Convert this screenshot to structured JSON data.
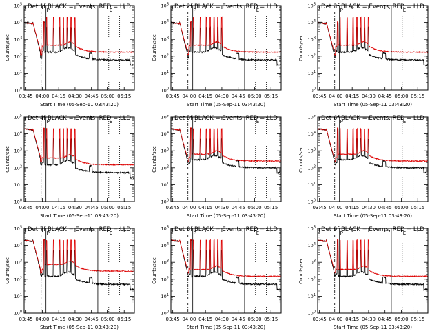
{
  "chart_data": {
    "type": "line",
    "layout": "3x3 grid",
    "shared": {
      "xlabel": "Start Time (05-Sep-11 03:43:20)",
      "ylabel": "Counts/sec",
      "x_tick_labels": [
        "03:45",
        "04:00",
        "04:15",
        "04:30",
        "04:45",
        "05:00",
        "05:15"
      ],
      "x_tick_minutes": [
        1.67,
        16.67,
        31.67,
        46.67,
        61.67,
        76.67,
        91.67
      ],
      "xlim_minutes": [
        0,
        101
      ],
      "y_scale": "log",
      "ylim": [
        1,
        100000
      ],
      "y_tick_labels": [
        "10^0",
        "10^1",
        "10^2",
        "10^3",
        "10^4",
        "10^5"
      ],
      "markers": [
        {
          "style": "dash-dot",
          "x_minutes": 15.6
        },
        {
          "style": "solid",
          "x_minutes": 20.0,
          "label": "P"
        },
        {
          "style": "solid",
          "x_minutes": 67.5
        },
        {
          "style": "dotted",
          "x_minutes": 77.5,
          "label": "E"
        },
        {
          "style": "dotted",
          "x_minutes": 87.5
        }
      ],
      "series_names": [
        "BLACK = Events",
        "RED = LLD"
      ],
      "series_colors": {
        "events": "#000000",
        "lld": "#dd0000"
      }
    },
    "panels": [
      {
        "title": "Det 1f BLACK = Events, RED = LLD",
        "lld_baseline": 180,
        "events_baseline": 60,
        "lld_start": 10000
      },
      {
        "title": "Det 2f BLACK = Events, RED = LLD",
        "lld_baseline": 180,
        "events_baseline": 60,
        "lld_start": 10000
      },
      {
        "title": "Det 3f BLACK = Events, RED = LLD",
        "lld_baseline": 180,
        "events_baseline": 60,
        "lld_start": 10000
      },
      {
        "title": "Det 4f BLACK = Events, RED = LLD",
        "lld_baseline": 150,
        "events_baseline": 50,
        "lld_start": 20000
      },
      {
        "title": "Det 5f BLACK = Events, RED = LLD",
        "lld_baseline": 250,
        "events_baseline": 100,
        "lld_start": 20000
      },
      {
        "title": "Det 6f BLACK = Events, RED = LLD",
        "lld_baseline": 250,
        "events_baseline": 100,
        "lld_start": 20000
      },
      {
        "title": "Det 7f BLACK = Events, RED = LLD",
        "lld_baseline": 300,
        "events_baseline": 50,
        "lld_start": 20000
      },
      {
        "title": "Det 8f BLACK = Events, RED = LLD",
        "lld_baseline": 150,
        "events_baseline": 50,
        "lld_start": 20000
      },
      {
        "title": "Det 9f BLACK = Events, RED = LLD",
        "lld_baseline": 150,
        "events_baseline": 50,
        "lld_start": 20000
      }
    ],
    "spikes_minutes": [
      20.5,
      27.0,
      32.5,
      36.0,
      39.5,
      43.0,
      46.5
    ],
    "grid": false,
    "legend": "in title"
  }
}
